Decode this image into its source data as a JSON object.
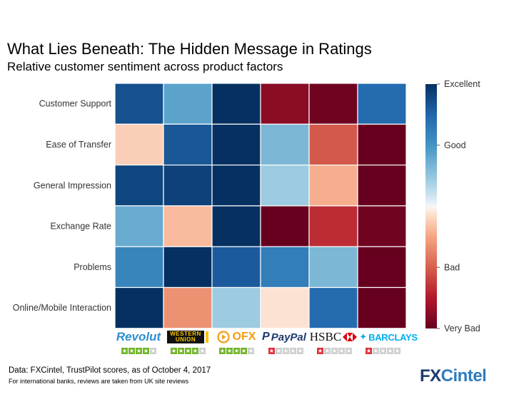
{
  "title": "What Lies Beneath: The Hidden Message in Ratings",
  "subtitle": "Relative customer sentiment across product factors",
  "chart_data": {
    "type": "heatmap",
    "rows": [
      "Customer Support",
      "Ease of Transfer",
      "General Impression",
      "Exchange Rate",
      "Problems",
      "Online/Mobile Interaction"
    ],
    "columns": [
      "Revolut",
      "Western Union",
      "OFX",
      "PayPal",
      "HSBC",
      "Barclays"
    ],
    "values": [
      [
        0.85,
        0.42,
        1.0,
        -0.88,
        -0.97,
        0.72
      ],
      [
        -0.12,
        0.82,
        1.0,
        0.32,
        -0.52,
        -1.0
      ],
      [
        0.9,
        0.92,
        1.0,
        0.22,
        -0.22,
        -1.0
      ],
      [
        0.38,
        -0.18,
        1.0,
        -1.0,
        -0.68,
        -0.97
      ],
      [
        0.58,
        1.0,
        0.8,
        0.62,
        0.32,
        -1.0
      ],
      [
        1.0,
        -0.32,
        0.22,
        -0.06,
        0.72,
        -1.0
      ]
    ],
    "value_range": [
      -1,
      1
    ],
    "colorbar_labels": [
      {
        "label": "Excellent",
        "value": 1
      },
      {
        "label": "Good",
        "value": 0.5
      },
      {
        "label": "Bad",
        "value": -0.5
      },
      {
        "label": "Very Bad",
        "value": -1
      }
    ],
    "trustpilot_stars": {
      "Revolut": 4,
      "Western Union": 4,
      "OFX": 4,
      "PayPal": 1,
      "HSBC": 1,
      "Barclays": 1
    }
  },
  "logos": {
    "revolut": "Revolut",
    "western_union": [
      "WESTERN",
      "UNION"
    ],
    "ofx": "OFX",
    "paypal": "PayPal",
    "hsbc": "HSBC",
    "barclays": "BARCLAYS"
  },
  "colors": {
    "star_green": "#73b52a",
    "star_red": "#e0303a",
    "star_empty": "#cfcfcf"
  },
  "footer": {
    "source": "Data: FXCintel, TrustPilot scores, as of October 4, 2017",
    "note": "For international banks, reviews are taken from UK site reviews",
    "brand_fx": "FX",
    "brand_cintel": "Cintel"
  }
}
